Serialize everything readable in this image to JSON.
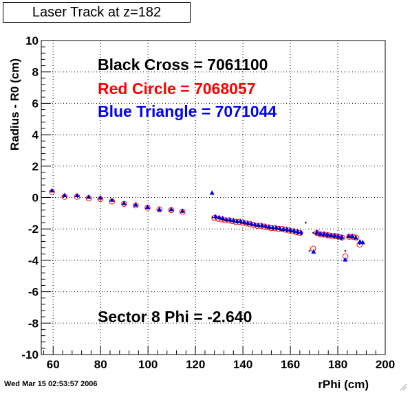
{
  "title": "Laser Track at z=182",
  "timestamp": "Wed Mar 15 02:53:57 2006",
  "annotations": {
    "black": "Black Cross  = 7061100",
    "red": "Red Circle = 7068057",
    "blue": "Blue Triangle = 7071044",
    "sector": "Sector 8 Phi = -2.640"
  },
  "colors": {
    "black": "#000000",
    "red": "#ff0000",
    "blue": "#0000ff",
    "grid": "#000000"
  },
  "chart_data": {
    "type": "scatter",
    "title": "Laser Track at z=182",
    "xlabel": "rPhi (cm)",
    "ylabel": "Radius - R0 (cm)",
    "xlim": [
      55,
      200
    ],
    "ylim": [
      -10,
      10
    ],
    "xticks": [
      60,
      80,
      100,
      120,
      140,
      160,
      180,
      200
    ],
    "yticks": [
      -10,
      -8,
      -6,
      -4,
      -2,
      0,
      2,
      4,
      6,
      8,
      10
    ],
    "grid": true,
    "series": [
      {
        "name": "Black Cross",
        "marker": "cross",
        "x": [
          59.5,
          64.8,
          70.1,
          75.0,
          79.9,
          84.8,
          89.9,
          94.8,
          99.8,
          104.8,
          109.8,
          114.5,
          127.2,
          128.5,
          130.0,
          131.6,
          133.0,
          134.6,
          136.1,
          137.6,
          139.1,
          140.5,
          142.1,
          143.6,
          145.1,
          146.6,
          148.1,
          149.6,
          151.1,
          152.6,
          154.1,
          155.6,
          157.1,
          158.6,
          160.1,
          161.6,
          163.1,
          164.6,
          166.5,
          168.1,
          169.6,
          171.0,
          172.5,
          174.0,
          175.6,
          177.1,
          178.6,
          180.1,
          181.6,
          183.2,
          184.7,
          186.1,
          187.6,
          189.1
        ],
        "y": [
          0.4,
          0.1,
          0.1,
          0.0,
          -0.1,
          -0.2,
          -0.4,
          -0.5,
          -0.6,
          -0.8,
          -0.8,
          -0.9,
          -1.25,
          -1.3,
          -1.35,
          -1.4,
          -1.45,
          -1.5,
          -1.5,
          -1.55,
          -1.6,
          -1.65,
          -1.7,
          -1.75,
          -1.8,
          -1.8,
          -1.85,
          -1.9,
          -1.95,
          -2.0,
          -2.0,
          -2.05,
          -2.1,
          -2.15,
          -2.2,
          -2.25,
          -2.3,
          -2.35,
          -1.6,
          -3.4,
          -2.25,
          -2.35,
          -2.4,
          -2.45,
          -2.5,
          -2.5,
          -2.55,
          -2.6,
          -2.65,
          -3.4,
          -2.5,
          -2.55,
          -2.6,
          -2.95
        ]
      },
      {
        "name": "Red Circle",
        "marker": "circle",
        "x": [
          59.5,
          64.8,
          70.1,
          75.0,
          79.9,
          84.8,
          89.9,
          94.8,
          99.8,
          104.8,
          109.8,
          114.5,
          128.0,
          129.5,
          131.0,
          132.5,
          134.0,
          135.5,
          137.0,
          138.5,
          140.0,
          141.5,
          143.0,
          144.5,
          146.0,
          147.5,
          149.0,
          150.5,
          152.0,
          153.5,
          155.0,
          156.5,
          158.0,
          159.5,
          161.0,
          162.5,
          164.0,
          169.6,
          171.2,
          172.7,
          174.2,
          175.8,
          177.3,
          178.8,
          180.3,
          181.8,
          183.2,
          184.8,
          186.3,
          187.7,
          189.2
        ],
        "y": [
          0.35,
          0.05,
          0.05,
          -0.05,
          -0.1,
          -0.25,
          -0.4,
          -0.5,
          -0.65,
          -0.75,
          -0.8,
          -0.9,
          -1.3,
          -1.35,
          -1.4,
          -1.45,
          -1.45,
          -1.5,
          -1.55,
          -1.55,
          -1.6,
          -1.65,
          -1.7,
          -1.75,
          -1.8,
          -1.8,
          -1.85,
          -1.9,
          -1.95,
          -1.95,
          -2.0,
          -2.0,
          -2.05,
          -2.1,
          -2.15,
          -2.2,
          -2.25,
          -3.25,
          -2.25,
          -2.35,
          -2.35,
          -2.4,
          -2.45,
          -2.45,
          -2.5,
          -2.55,
          -3.75,
          -2.5,
          -2.5,
          -2.55,
          -3.0
        ]
      },
      {
        "name": "Blue Triangle",
        "marker": "triangle",
        "x": [
          59.5,
          64.8,
          70.1,
          75.0,
          79.9,
          84.8,
          89.9,
          94.8,
          99.8,
          104.8,
          109.8,
          114.5,
          127.0,
          128.5,
          130.0,
          131.5,
          133.0,
          134.5,
          136.0,
          137.5,
          139.0,
          140.5,
          142.0,
          143.5,
          145.0,
          146.5,
          148.0,
          149.5,
          151.0,
          152.5,
          154.0,
          155.5,
          157.0,
          158.5,
          160.0,
          161.5,
          163.0,
          164.5,
          169.8,
          171.2,
          172.7,
          174.2,
          175.7,
          177.2,
          178.7,
          180.2,
          181.7,
          183.1,
          184.6,
          186.1,
          187.6,
          189.3,
          190.5
        ],
        "y": [
          0.45,
          0.15,
          0.15,
          0.05,
          0.0,
          -0.15,
          -0.35,
          -0.45,
          -0.6,
          -0.75,
          -0.75,
          -0.85,
          0.3,
          -1.2,
          -1.25,
          -1.3,
          -1.4,
          -1.4,
          -1.45,
          -1.5,
          -1.5,
          -1.55,
          -1.6,
          -1.65,
          -1.7,
          -1.75,
          -1.75,
          -1.8,
          -1.85,
          -1.9,
          -1.9,
          -1.95,
          -2.0,
          -2.0,
          -2.05,
          -2.1,
          -2.15,
          -2.2,
          -3.45,
          -2.2,
          -2.3,
          -2.3,
          -2.35,
          -2.4,
          -2.4,
          -2.45,
          -2.5,
          -3.95,
          -2.45,
          -2.45,
          -2.55,
          -2.8,
          -2.85
        ]
      }
    ]
  }
}
